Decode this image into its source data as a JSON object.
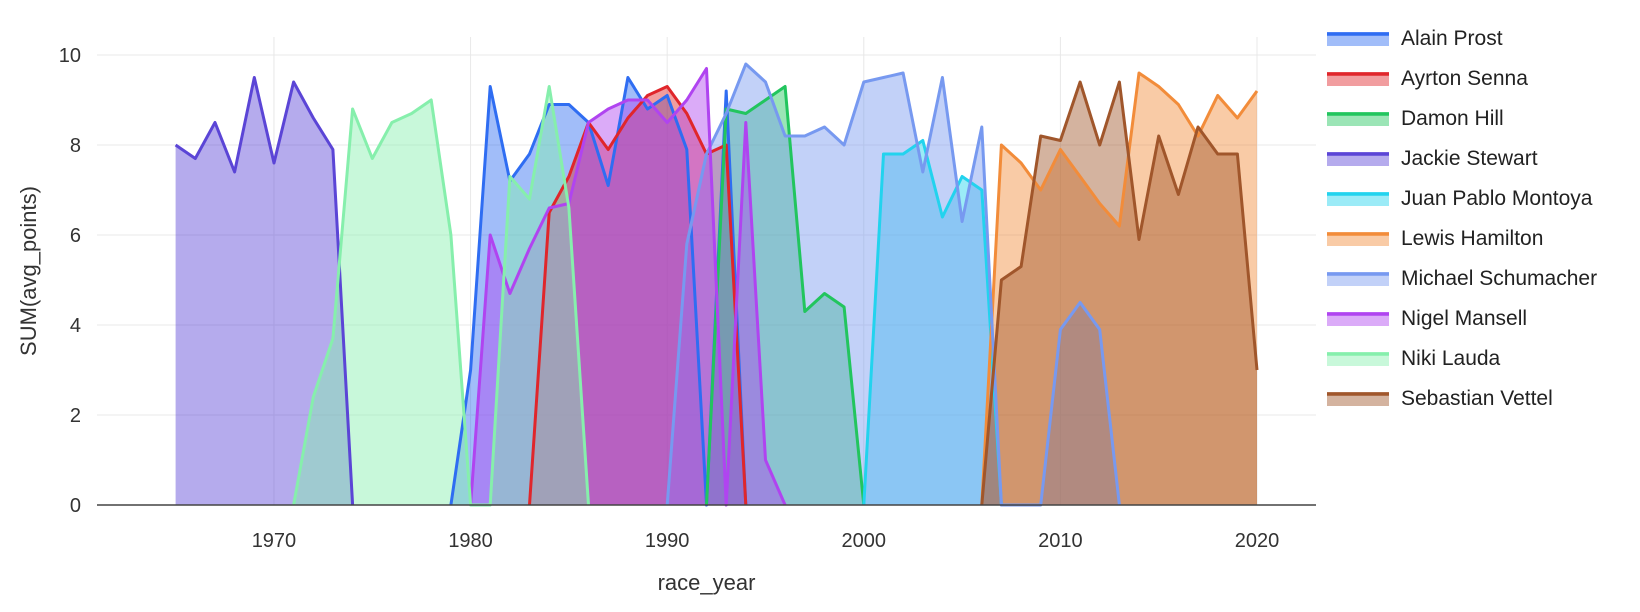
{
  "chart_data": {
    "type": "area",
    "title": "",
    "xlabel": "race_year",
    "ylabel": "SUM(avg_points)",
    "xlim": [
      1961,
      2023
    ],
    "ylim": [
      0,
      10.4
    ],
    "x_ticks": [
      1970,
      1980,
      1990,
      2000,
      2010,
      2020
    ],
    "y_ticks": [
      0,
      2,
      4,
      6,
      8,
      10
    ],
    "grid": true,
    "legend_position": "right",
    "series": [
      {
        "name": "Alain Prost",
        "color": "#2f6df2",
        "points": [
          [
            1979,
            0
          ],
          [
            1980,
            3
          ],
          [
            1981,
            9.3
          ],
          [
            1982,
            7.2
          ],
          [
            1983,
            7.8
          ],
          [
            1984,
            8.9
          ],
          [
            1985,
            8.9
          ],
          [
            1986,
            8.5
          ],
          [
            1987,
            7.1
          ],
          [
            1988,
            9.5
          ],
          [
            1989,
            8.8
          ],
          [
            1990,
            9.1
          ],
          [
            1991,
            7.9
          ],
          [
            1992,
            0
          ],
          [
            1993,
            9.2
          ],
          [
            1994,
            0
          ]
        ]
      },
      {
        "name": "Ayrton Senna",
        "color": "#e0262b",
        "points": [
          [
            1983,
            0
          ],
          [
            1984,
            6.5
          ],
          [
            1985,
            7.3
          ],
          [
            1986,
            8.5
          ],
          [
            1987,
            7.9
          ],
          [
            1988,
            8.6
          ],
          [
            1989,
            9.1
          ],
          [
            1990,
            9.3
          ],
          [
            1991,
            8.7
          ],
          [
            1992,
            7.8
          ],
          [
            1993,
            8.0
          ],
          [
            1994,
            0
          ]
        ]
      },
      {
        "name": "Damon Hill",
        "color": "#22c55e",
        "points": [
          [
            1992,
            0
          ],
          [
            1993,
            8.8
          ],
          [
            1994,
            8.7
          ],
          [
            1995,
            9.0
          ],
          [
            1996,
            9.3
          ],
          [
            1997,
            4.3
          ],
          [
            1998,
            4.7
          ],
          [
            1999,
            4.4
          ],
          [
            2000,
            0
          ]
        ]
      },
      {
        "name": "Jackie Stewart",
        "color": "#5b45d6",
        "points": [
          [
            1965,
            8.0
          ],
          [
            1966,
            7.7
          ],
          [
            1967,
            8.5
          ],
          [
            1968,
            7.4
          ],
          [
            1969,
            9.5
          ],
          [
            1970,
            7.6
          ],
          [
            1971,
            9.4
          ],
          [
            1972,
            8.6
          ],
          [
            1973,
            7.9
          ],
          [
            1974,
            0
          ]
        ]
      },
      {
        "name": "Juan Pablo Montoya",
        "color": "#22d3ee",
        "points": [
          [
            2000,
            0
          ],
          [
            2001,
            7.8
          ],
          [
            2002,
            7.8
          ],
          [
            2003,
            8.1
          ],
          [
            2004,
            6.4
          ],
          [
            2005,
            7.3
          ],
          [
            2006,
            7.0
          ],
          [
            2007,
            0
          ]
        ]
      },
      {
        "name": "Lewis Hamilton",
        "color": "#f28c3a",
        "points": [
          [
            2006,
            0
          ],
          [
            2007,
            8.0
          ],
          [
            2008,
            7.6
          ],
          [
            2009,
            7.0
          ],
          [
            2010,
            7.9
          ],
          [
            2011,
            7.3
          ],
          [
            2012,
            6.7
          ],
          [
            2013,
            6.2
          ],
          [
            2014,
            9.6
          ],
          [
            2015,
            9.3
          ],
          [
            2016,
            8.9
          ],
          [
            2017,
            8.2
          ],
          [
            2018,
            9.1
          ],
          [
            2019,
            8.6
          ],
          [
            2020,
            9.2
          ]
        ]
      },
      {
        "name": "Michael Schumacher",
        "color": "#7799f0",
        "points": [
          [
            1990,
            0
          ],
          [
            1991,
            5.8
          ],
          [
            1992,
            7.8
          ],
          [
            1993,
            8.7
          ],
          [
            1994,
            9.8
          ],
          [
            1995,
            9.4
          ],
          [
            1996,
            8.2
          ],
          [
            1997,
            8.2
          ],
          [
            1998,
            8.4
          ],
          [
            1999,
            8.0
          ],
          [
            2000,
            9.4
          ],
          [
            2001,
            9.5
          ],
          [
            2002,
            9.6
          ],
          [
            2003,
            7.4
          ],
          [
            2004,
            9.5
          ],
          [
            2005,
            6.3
          ],
          [
            2006,
            8.4
          ],
          [
            2007,
            0
          ],
          [
            2009,
            0
          ],
          [
            2010,
            3.9
          ],
          [
            2011,
            4.5
          ],
          [
            2012,
            3.9
          ],
          [
            2013,
            0
          ]
        ]
      },
      {
        "name": "Nigel Mansell",
        "color": "#b044f0",
        "points": [
          [
            1980,
            0
          ],
          [
            1981,
            6.0
          ],
          [
            1982,
            4.7
          ],
          [
            1983,
            5.7
          ],
          [
            1984,
            6.6
          ],
          [
            1985,
            6.7
          ],
          [
            1986,
            8.5
          ],
          [
            1987,
            8.8
          ],
          [
            1988,
            9.0
          ],
          [
            1989,
            9.0
          ],
          [
            1990,
            8.5
          ],
          [
            1991,
            9.0
          ],
          [
            1992,
            9.7
          ],
          [
            1993,
            0
          ],
          [
            1994,
            8.5
          ],
          [
            1995,
            1.0
          ],
          [
            1996,
            0
          ]
        ]
      },
      {
        "name": "Niki Lauda",
        "color": "#86efac",
        "points": [
          [
            1971,
            0
          ],
          [
            1972,
            2.4
          ],
          [
            1973,
            3.7
          ],
          [
            1974,
            8.8
          ],
          [
            1975,
            7.7
          ],
          [
            1976,
            8.5
          ],
          [
            1977,
            8.7
          ],
          [
            1978,
            9.0
          ],
          [
            1979,
            6.0
          ],
          [
            1980,
            0
          ],
          [
            1981,
            0
          ],
          [
            1982,
            7.3
          ],
          [
            1983,
            6.8
          ],
          [
            1984,
            9.3
          ],
          [
            1985,
            6.6
          ],
          [
            1986,
            0
          ]
        ]
      },
      {
        "name": "Sebastian Vettel",
        "color": "#a0562b",
        "points": [
          [
            2006,
            0
          ],
          [
            2007,
            5.0
          ],
          [
            2008,
            5.3
          ],
          [
            2009,
            8.2
          ],
          [
            2010,
            8.1
          ],
          [
            2011,
            9.4
          ],
          [
            2012,
            8.0
          ],
          [
            2013,
            9.4
          ],
          [
            2014,
            5.9
          ],
          [
            2015,
            8.2
          ],
          [
            2016,
            6.9
          ],
          [
            2017,
            8.4
          ],
          [
            2018,
            7.8
          ],
          [
            2019,
            7.8
          ],
          [
            2020,
            3.0
          ]
        ]
      }
    ]
  }
}
